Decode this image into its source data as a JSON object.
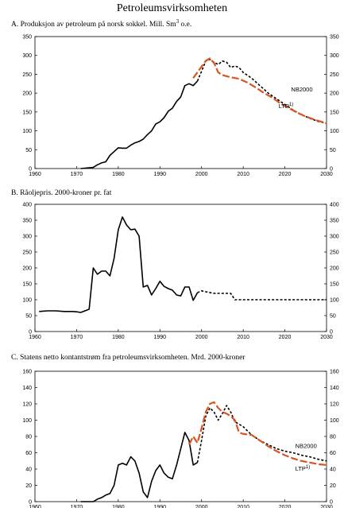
{
  "page_title": "Petroleumsvirksomheten",
  "colors": {
    "history": "#000000",
    "nb2000": "#000000",
    "ltp": "#d9541e",
    "axis": "#000000"
  },
  "chart_data": [
    {
      "type": "line",
      "title": "A. Produksjon av petroleum på norsk sokkel. Mill. Sm",
      "title_sup": "3",
      "title_suffix": " o.e.",
      "xlim": [
        1960,
        2030
      ],
      "ylim": [
        0,
        350
      ],
      "x_ticks": [
        1960,
        1970,
        1980,
        1990,
        2000,
        2010,
        2020,
        2030
      ],
      "y_ticks": [
        0,
        50,
        100,
        150,
        200,
        250,
        300,
        350
      ],
      "series": [
        {
          "key": "history",
          "style": "solid",
          "x": [
            1971,
            1972,
            1973,
            1974,
            1975,
            1976,
            1977,
            1978,
            1979,
            1980,
            1981,
            1982,
            1983,
            1984,
            1985,
            1986,
            1987,
            1988,
            1989,
            1990,
            1991,
            1992,
            1993,
            1994,
            1995,
            1996,
            1997,
            1998,
            1999
          ],
          "y": [
            0,
            1,
            2,
            3,
            10,
            15,
            18,
            35,
            45,
            55,
            54,
            54,
            62,
            68,
            72,
            78,
            90,
            100,
            118,
            124,
            135,
            152,
            160,
            178,
            190,
            220,
            225,
            220,
            232
          ]
        },
        {
          "key": "nb2000",
          "style": "dotted",
          "name": "NB2000",
          "x": [
            1999,
            2000,
            2001,
            2002,
            2003,
            2004,
            2005,
            2006,
            2007,
            2008,
            2009,
            2010,
            2012,
            2014,
            2016,
            2018,
            2020,
            2022,
            2024,
            2026,
            2028,
            2030
          ],
          "y": [
            232,
            258,
            285,
            290,
            282,
            276,
            285,
            282,
            268,
            272,
            268,
            255,
            240,
            220,
            200,
            185,
            170,
            155,
            143,
            133,
            125,
            120
          ]
        },
        {
          "key": "ltp",
          "style": "dashed",
          "name": "LTP",
          "x": [
            1998,
            2000,
            2001,
            2002,
            2003,
            2004,
            2005,
            2007,
            2009,
            2011,
            2013,
            2015,
            2017,
            2019,
            2021,
            2023,
            2025,
            2027,
            2030
          ],
          "y": [
            240,
            270,
            286,
            292,
            280,
            255,
            248,
            242,
            238,
            228,
            215,
            200,
            188,
            172,
            160,
            148,
            138,
            130,
            120
          ]
        }
      ],
      "annotations": [
        {
          "text": "NB2000",
          "x": 2021.5,
          "y": 205
        },
        {
          "text": "LTP",
          "sup": "1)",
          "x": 2018.5,
          "y": 160
        }
      ]
    },
    {
      "type": "line",
      "title": "B. Råoljepris. 2000-kroner pr. fat",
      "xlim": [
        1960,
        2030
      ],
      "ylim": [
        0,
        400
      ],
      "x_ticks": [
        1960,
        1970,
        1980,
        1990,
        2000,
        2010,
        2020,
        2030
      ],
      "y_ticks": [
        0,
        50,
        100,
        150,
        200,
        250,
        300,
        350,
        400
      ],
      "series": [
        {
          "key": "history",
          "style": "solid",
          "x": [
            1961,
            1963,
            1965,
            1967,
            1969,
            1970,
            1971,
            1972,
            1973,
            1974,
            1975,
            1976,
            1977,
            1978,
            1979,
            1980,
            1981,
            1982,
            1983,
            1984,
            1985,
            1986,
            1987,
            1988,
            1989,
            1990,
            1991,
            1992,
            1993,
            1994,
            1995,
            1996,
            1997,
            1998,
            1999
          ],
          "y": [
            63,
            65,
            65,
            63,
            63,
            62,
            60,
            65,
            70,
            200,
            180,
            190,
            190,
            175,
            230,
            320,
            360,
            335,
            320,
            322,
            300,
            140,
            145,
            115,
            135,
            158,
            142,
            135,
            130,
            115,
            112,
            140,
            140,
            98,
            122
          ]
        },
        {
          "key": "nb2000",
          "style": "dotted",
          "x": [
            1999,
            2000,
            2001,
            2003,
            2005,
            2006,
            2007,
            2008,
            2010,
            2015,
            2020,
            2025,
            2030
          ],
          "y": [
            122,
            128,
            125,
            120,
            120,
            120,
            120,
            100,
            100,
            100,
            100,
            100,
            100
          ]
        }
      ],
      "annotations": []
    },
    {
      "type": "line",
      "title": "C. Statens netto kontantstrøm fra petroleumsvirksomheten. Mrd. 2000-kroner",
      "xlim": [
        1960,
        2030
      ],
      "ylim": [
        0,
        160
      ],
      "x_ticks": [
        1960,
        1970,
        1980,
        1990,
        2000,
        2010,
        2020,
        2030
      ],
      "y_ticks": [
        0,
        20,
        40,
        60,
        80,
        100,
        120,
        140,
        160
      ],
      "series": [
        {
          "key": "history",
          "style": "solid",
          "x": [
            1971,
            1974,
            1975,
            1976,
            1977,
            1978,
            1979,
            1980,
            1981,
            1982,
            1983,
            1984,
            1985,
            1986,
            1987,
            1988,
            1989,
            1990,
            1991,
            1992,
            1993,
            1994,
            1995,
            1996,
            1997,
            1998,
            1999
          ],
          "y": [
            0,
            0,
            3,
            5,
            8,
            10,
            20,
            45,
            47,
            45,
            55,
            50,
            35,
            12,
            5,
            25,
            38,
            45,
            35,
            30,
            28,
            45,
            65,
            85,
            75,
            45,
            48
          ],
          "split_x": 1997
        },
        {
          "key": "nb2000",
          "style": "dotted",
          "name": "NB2000",
          "x": [
            1999,
            2000,
            2001,
            2002,
            2003,
            2004,
            2005,
            2006,
            2007,
            2008,
            2009,
            2010,
            2012,
            2014,
            2016,
            2018,
            2020,
            2022,
            2024,
            2026,
            2028,
            2030
          ],
          "y": [
            48,
            75,
            105,
            115,
            110,
            100,
            108,
            118,
            110,
            98,
            95,
            92,
            82,
            75,
            70,
            65,
            62,
            60,
            57,
            55,
            52,
            50
          ]
        },
        {
          "key": "ltp",
          "style": "dashed",
          "name": "LTP",
          "x": [
            1997,
            1998,
            1999,
            2000,
            2001,
            2002,
            2003,
            2004,
            2005,
            2006,
            2007,
            2008,
            2009,
            2010,
            2012,
            2014,
            2016,
            2018,
            2020,
            2022,
            2024,
            2026,
            2028,
            2030
          ],
          "y": [
            70,
            80,
            72,
            90,
            110,
            120,
            122,
            115,
            110,
            108,
            105,
            100,
            85,
            83,
            82,
            75,
            68,
            62,
            57,
            53,
            50,
            48,
            46,
            45
          ]
        }
      ],
      "annotations": [
        {
          "text": "NB2000",
          "x": 2022.5,
          "y": 66
        },
        {
          "text": "LTP",
          "sup": "1)",
          "x": 2022.5,
          "y": 38
        }
      ]
    }
  ]
}
